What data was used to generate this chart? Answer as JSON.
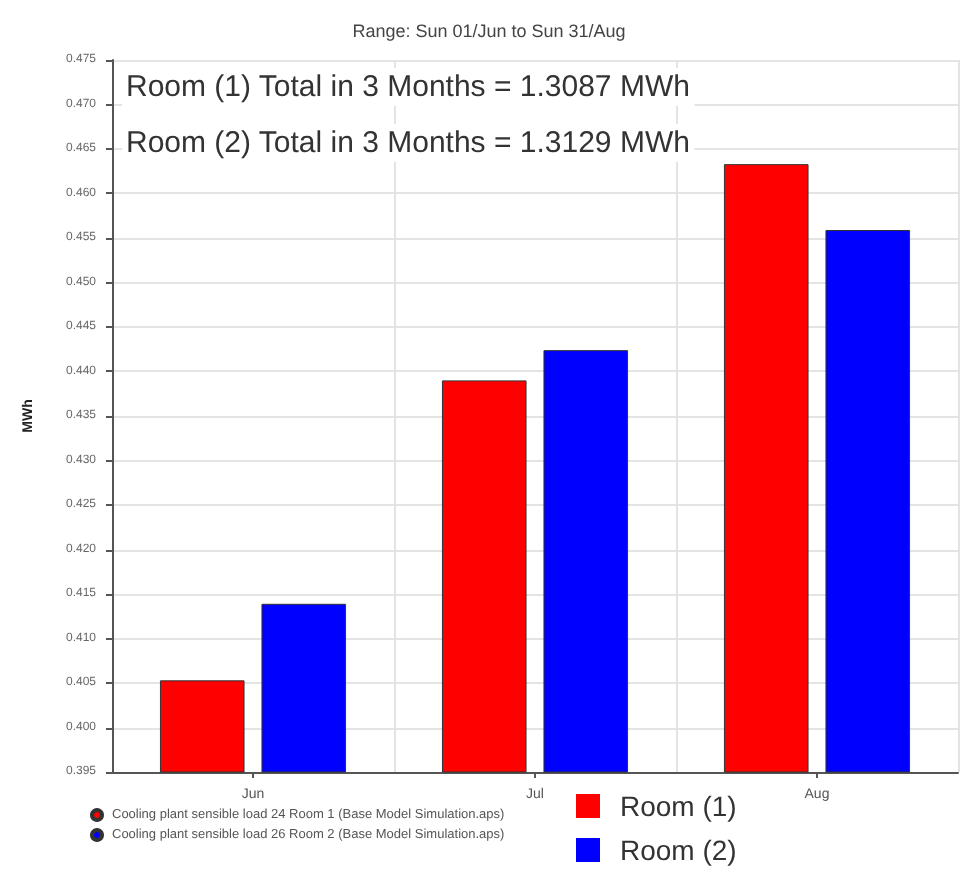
{
  "chart_data": {
    "type": "bar",
    "title": "Range: Sun 01/Jun to Sun 31/Aug",
    "ylabel": "MWh",
    "categories": [
      "Jun",
      "Jul",
      "Aug"
    ],
    "series": [
      {
        "name": "Cooling plant sensible load 24 Room 1 (Base Model Simulation.aps)",
        "color": "#ff0000",
        "values": [
          0.4053,
          0.439,
          0.4633
        ]
      },
      {
        "name": "Cooling plant sensible load 26 Room 2 (Base Model Simulation.aps)",
        "color": "#0000ff",
        "values": [
          0.4139,
          0.4424,
          0.4559
        ]
      }
    ],
    "ylim": [
      0.395,
      0.475
    ],
    "yticks": [
      {
        "value": 0.395,
        "label": "0.395"
      },
      {
        "value": 0.4,
        "label": "0.400"
      },
      {
        "value": 0.405,
        "label": "0.405"
      },
      {
        "value": 0.41,
        "label": "0.410"
      },
      {
        "value": 0.415,
        "label": "0.415"
      },
      {
        "value": 0.42,
        "label": "0.420"
      },
      {
        "value": 0.425,
        "label": "0.425"
      },
      {
        "value": 0.43,
        "label": "0.430"
      },
      {
        "value": 0.435,
        "label": "0.435"
      },
      {
        "value": 0.44,
        "label": "0.440"
      },
      {
        "value": 0.445,
        "label": "0.445"
      },
      {
        "value": 0.45,
        "label": "0.450"
      },
      {
        "value": 0.455,
        "label": "0.455"
      },
      {
        "value": 0.46,
        "label": "0.460"
      },
      {
        "value": 0.465,
        "label": "0.465"
      },
      {
        "value": 0.47,
        "label": "0.470"
      },
      {
        "value": 0.475,
        "label": "0.475"
      }
    ],
    "annotations": [
      "Room (1) Total in 3 Months = 1.3087 MWh",
      "Room (2) Total in 3 Months = 1.3129 MWh",
      "Room (1)",
      "Room (2)"
    ],
    "grid": true,
    "legend": "bottom left"
  }
}
